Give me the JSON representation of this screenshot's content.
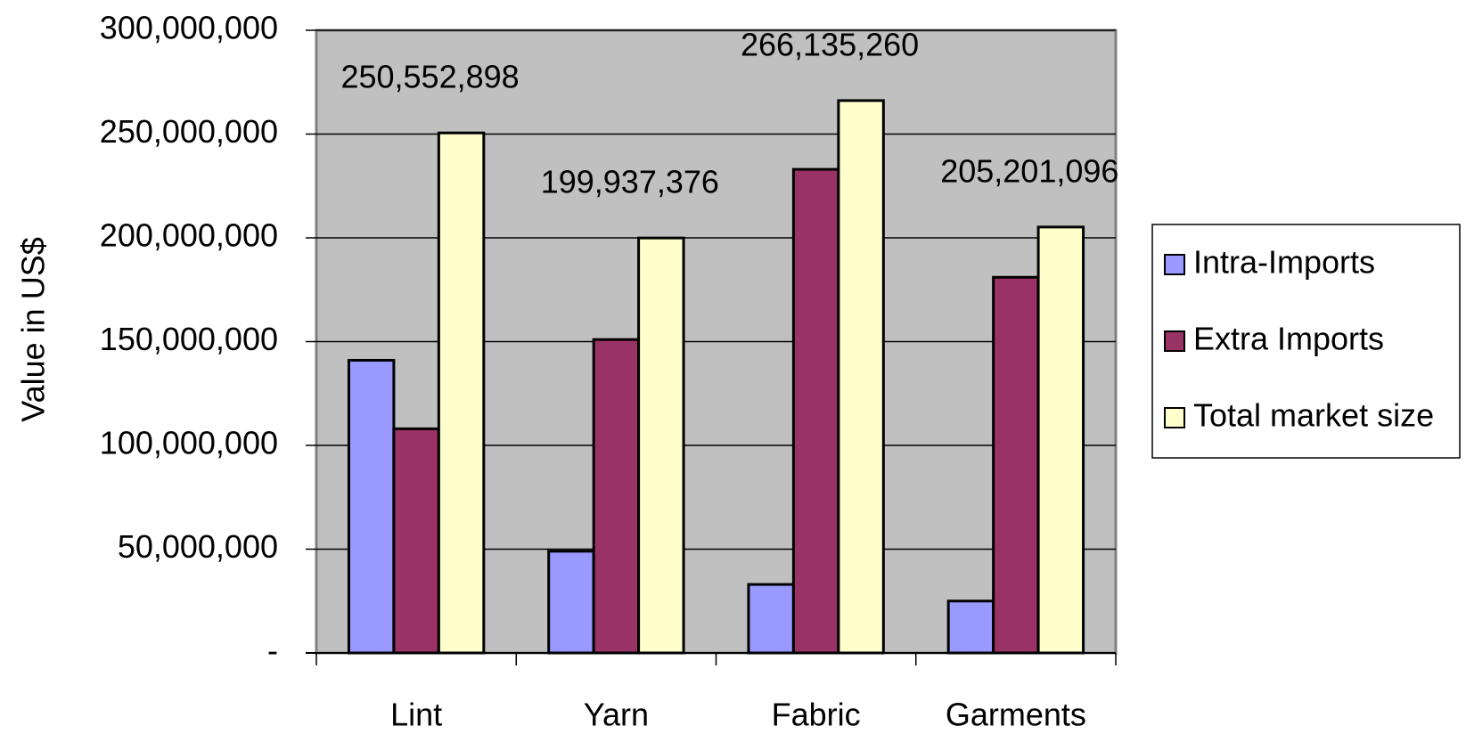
{
  "chart_data": {
    "type": "bar",
    "y_label": "Value in US$",
    "categories": [
      "Lint",
      "Yarn",
      "Fabric",
      "Garments"
    ],
    "series": [
      {
        "name": "Intra-Imports",
        "color": "#9999ff",
        "values": [
          141000000,
          49000000,
          33000000,
          25000000
        ]
      },
      {
        "name": "Extra Imports",
        "color": "#993366",
        "values": [
          108000000,
          151000000,
          233000000,
          181000000
        ]
      },
      {
        "name": "Total market size",
        "color": "#ffffcc",
        "values": [
          250552898,
          199937376,
          266135260,
          205201096
        ],
        "value_labels": [
          "250,552,898",
          "199,937,376",
          "266,135,260",
          "205,201,096"
        ]
      }
    ],
    "ylim": [
      0,
      300000000
    ],
    "yticks": [
      {
        "value": 0,
        "label": "-"
      },
      {
        "value": 50000000,
        "label": "50,000,000"
      },
      {
        "value": 100000000,
        "label": "100,000,000"
      },
      {
        "value": 150000000,
        "label": "150,000,000"
      },
      {
        "value": 200000000,
        "label": "200,000,000"
      },
      {
        "value": 250000000,
        "label": "250,000,000"
      },
      {
        "value": 300000000,
        "label": "300,000,000"
      }
    ],
    "grid": true,
    "plot_background": "#c0c0c0",
    "legend": "right"
  }
}
